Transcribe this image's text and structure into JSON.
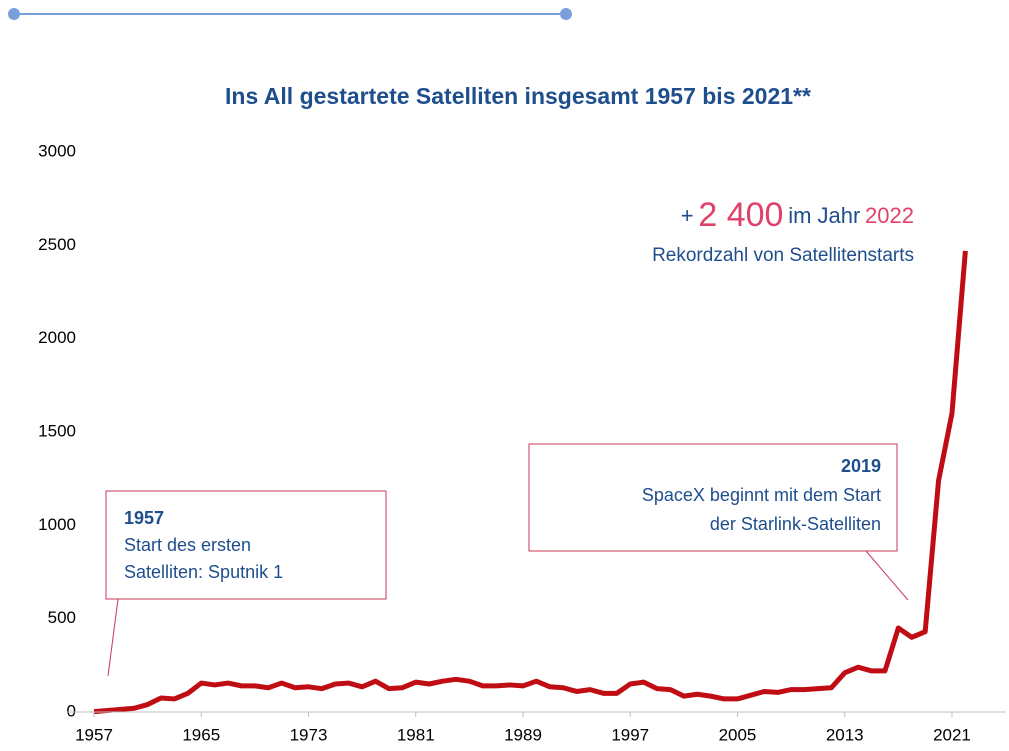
{
  "chart_data": {
    "type": "line",
    "title": "Ins All gestartete Satelliten insgesamt 1957 bis 2021**",
    "x": [
      1957,
      1958,
      1959,
      1960,
      1961,
      1962,
      1963,
      1964,
      1965,
      1966,
      1967,
      1968,
      1969,
      1970,
      1971,
      1972,
      1973,
      1974,
      1975,
      1976,
      1977,
      1978,
      1979,
      1980,
      1981,
      1982,
      1983,
      1984,
      1985,
      1986,
      1987,
      1988,
      1989,
      1990,
      1991,
      1992,
      1993,
      1994,
      1995,
      1996,
      1997,
      1998,
      1999,
      2000,
      2001,
      2002,
      2003,
      2004,
      2005,
      2006,
      2007,
      2008,
      2009,
      2010,
      2011,
      2012,
      2013,
      2014,
      2015,
      2016,
      2017,
      2018,
      2019,
      2020,
      2021,
      2022
    ],
    "series": [
      {
        "color": "#c00d14",
        "values": [
          2,
          8,
          14,
          20,
          40,
          75,
          70,
          100,
          155,
          145,
          155,
          140,
          140,
          130,
          155,
          130,
          135,
          125,
          150,
          155,
          135,
          165,
          125,
          130,
          160,
          150,
          165,
          175,
          165,
          140,
          140,
          145,
          140,
          165,
          135,
          130,
          110,
          120,
          100,
          100,
          150,
          160,
          125,
          120,
          85,
          95,
          85,
          70,
          70,
          90,
          110,
          105,
          120,
          120,
          125,
          130,
          210,
          240,
          220,
          220,
          450,
          400,
          430,
          1240,
          1600,
          2470
        ]
      }
    ],
    "xlim": [
      1955,
      2025
    ],
    "xticks": [
      1957,
      1965,
      1973,
      1981,
      1989,
      1997,
      2005,
      2013,
      2021
    ],
    "ylim": [
      0,
      3000
    ],
    "yticks": [
      0,
      500,
      1000,
      1500,
      2000,
      2500,
      3000
    ],
    "callout": {
      "parts": [
        "+",
        "2 400",
        "im Jahr",
        "2022"
      ],
      "subtitle": "Rekordzahl von Satellitenstarts"
    },
    "annotations": [
      {
        "year": "1957",
        "lines": [
          "Start des ersten",
          "Satelliten: Sputnik 1"
        ]
      },
      {
        "year": "2019",
        "lines": [
          "SpaceX beginnt mit dem Start",
          "der Starlink-Satelliten"
        ]
      }
    ]
  }
}
